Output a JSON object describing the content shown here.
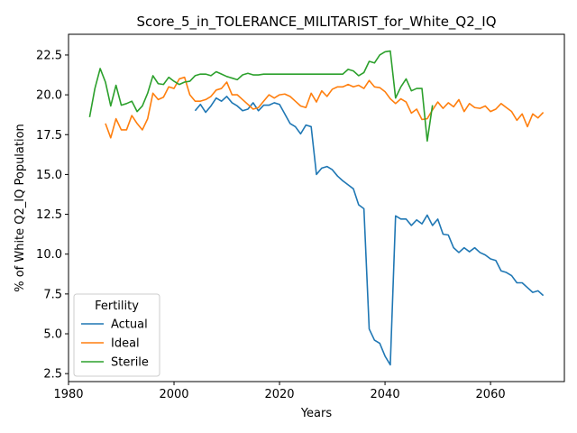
{
  "chart_data": {
    "type": "line",
    "title": "Score_5_in_TOLERANCE_MILITARIST_for_White_Q2_IQ",
    "xlabel": "Years",
    "ylabel": "% of White Q2_IQ Population",
    "xlim": [
      1980,
      2074
    ],
    "ylim": [
      2.0,
      23.8
    ],
    "xticks": [
      1980,
      2000,
      2020,
      2040,
      2060
    ],
    "yticks": [
      2.5,
      5.0,
      7.5,
      10.0,
      12.5,
      15.0,
      17.5,
      20.0,
      22.5
    ],
    "grid": false,
    "legend": {
      "title": "Fertility",
      "placement": "lower-left"
    },
    "series": [
      {
        "name": "Actual",
        "color": "#1f77b4",
        "x": [
          2004,
          2005,
          2006,
          2007,
          2008,
          2009,
          2010,
          2011,
          2012,
          2013,
          2014,
          2015,
          2016,
          2017,
          2018,
          2019,
          2020,
          2021,
          2022,
          2023,
          2024,
          2025,
          2026,
          2027,
          2028,
          2029,
          2030,
          2031,
          2032,
          2033,
          2034,
          2035,
          2036,
          2037,
          2038,
          2039,
          2040,
          2041,
          2042,
          2043,
          2044,
          2045,
          2046,
          2047,
          2048,
          2049,
          2050,
          2051,
          2052,
          2053,
          2054,
          2055,
          2056,
          2057,
          2058,
          2059,
          2060,
          2061,
          2062,
          2063,
          2064,
          2065,
          2066,
          2067,
          2068,
          2069,
          2070
        ],
        "values": [
          19.0,
          19.4,
          18.9,
          19.3,
          19.8,
          19.6,
          19.9,
          19.5,
          19.3,
          19.0,
          19.1,
          19.5,
          19.0,
          19.35,
          19.35,
          19.5,
          19.4,
          18.8,
          18.2,
          18.0,
          17.55,
          18.1,
          18.0,
          15.0,
          15.4,
          15.5,
          15.3,
          14.9,
          14.6,
          14.35,
          14.1,
          13.1,
          12.85,
          5.3,
          4.6,
          4.4,
          3.6,
          3.05,
          12.4,
          12.2,
          12.2,
          11.8,
          12.15,
          11.9,
          12.45,
          11.8,
          12.2,
          11.25,
          11.2,
          10.4,
          10.1,
          10.4,
          10.15,
          10.4,
          10.1,
          9.95,
          9.7,
          9.6,
          8.95,
          8.85,
          8.65,
          8.2,
          8.2,
          7.9,
          7.6,
          7.7,
          7.4
        ]
      },
      {
        "name": "Ideal",
        "color": "#ff7f0e",
        "x": [
          1987,
          1988,
          1989,
          1990,
          1991,
          1992,
          1993,
          1994,
          1995,
          1996,
          1997,
          1998,
          1999,
          2000,
          2001,
          2002,
          2003,
          2004,
          2005,
          2006,
          2007,
          2008,
          2009,
          2010,
          2011,
          2012,
          2013,
          2014,
          2015,
          2016,
          2017,
          2018,
          2019,
          2020,
          2021,
          2022,
          2023,
          2024,
          2025,
          2026,
          2027,
          2028,
          2029,
          2030,
          2031,
          2032,
          2033,
          2034,
          2035,
          2036,
          2037,
          2038,
          2039,
          2040,
          2041,
          2042,
          2043,
          2044,
          2045,
          2046,
          2047,
          2048,
          2049,
          2050,
          2051,
          2052,
          2053,
          2054,
          2055,
          2056,
          2057,
          2058,
          2059,
          2060,
          2061,
          2062,
          2063,
          2064,
          2065,
          2066,
          2067,
          2068,
          2069,
          2070
        ],
        "values": [
          18.2,
          17.3,
          18.5,
          17.8,
          17.8,
          18.7,
          18.2,
          17.8,
          18.5,
          20.1,
          19.7,
          19.85,
          20.5,
          20.4,
          21.0,
          21.1,
          20.0,
          19.6,
          19.6,
          19.7,
          19.9,
          20.3,
          20.4,
          20.8,
          20.0,
          20.0,
          19.7,
          19.4,
          19.1,
          19.2,
          19.6,
          20.0,
          19.8,
          20.0,
          20.05,
          19.9,
          19.6,
          19.3,
          19.2,
          20.1,
          19.55,
          20.25,
          19.9,
          20.35,
          20.5,
          20.5,
          20.65,
          20.5,
          20.6,
          20.4,
          20.9,
          20.5,
          20.45,
          20.2,
          19.75,
          19.45,
          19.75,
          19.55,
          18.85,
          19.1,
          18.45,
          18.5,
          19.05,
          19.55,
          19.15,
          19.5,
          19.25,
          19.7,
          18.95,
          19.45,
          19.2,
          19.15,
          19.3,
          18.95,
          19.1,
          19.45,
          19.2,
          18.95,
          18.4,
          18.8,
          18.0,
          18.8,
          18.55,
          18.9
        ]
      },
      {
        "name": "Sterile",
        "color": "#2ca02c",
        "x": [
          1984,
          1985,
          1986,
          1987,
          1988,
          1989,
          1990,
          1991,
          1992,
          1993,
          1994,
          1995,
          1996,
          1997,
          1998,
          1999,
          2000,
          2001,
          2002,
          2003,
          2004,
          2005,
          2006,
          2007,
          2008,
          2009,
          2010,
          2011,
          2012,
          2013,
          2014,
          2015,
          2016,
          2017,
          2018,
          2032,
          2033,
          2034,
          2035,
          2036,
          2037,
          2038,
          2039,
          2040,
          2041,
          2042,
          2043,
          2044,
          2045,
          2046,
          2047,
          2048,
          2049
        ],
        "values": [
          18.6,
          20.4,
          21.65,
          20.8,
          19.3,
          20.6,
          19.35,
          19.45,
          19.6,
          18.95,
          19.3,
          20.1,
          21.2,
          20.7,
          20.65,
          21.1,
          20.85,
          20.65,
          20.8,
          20.85,
          21.2,
          21.3,
          21.3,
          21.2,
          21.45,
          21.3,
          21.15,
          21.05,
          20.95,
          21.25,
          21.35,
          21.25,
          21.25,
          21.3,
          21.3,
          21.3,
          21.6,
          21.5,
          21.2,
          21.4,
          22.1,
          22.0,
          22.5,
          22.7,
          22.75,
          19.8,
          20.5,
          21.0,
          20.25,
          20.4,
          20.4,
          17.1,
          19.35
        ]
      }
    ]
  }
}
